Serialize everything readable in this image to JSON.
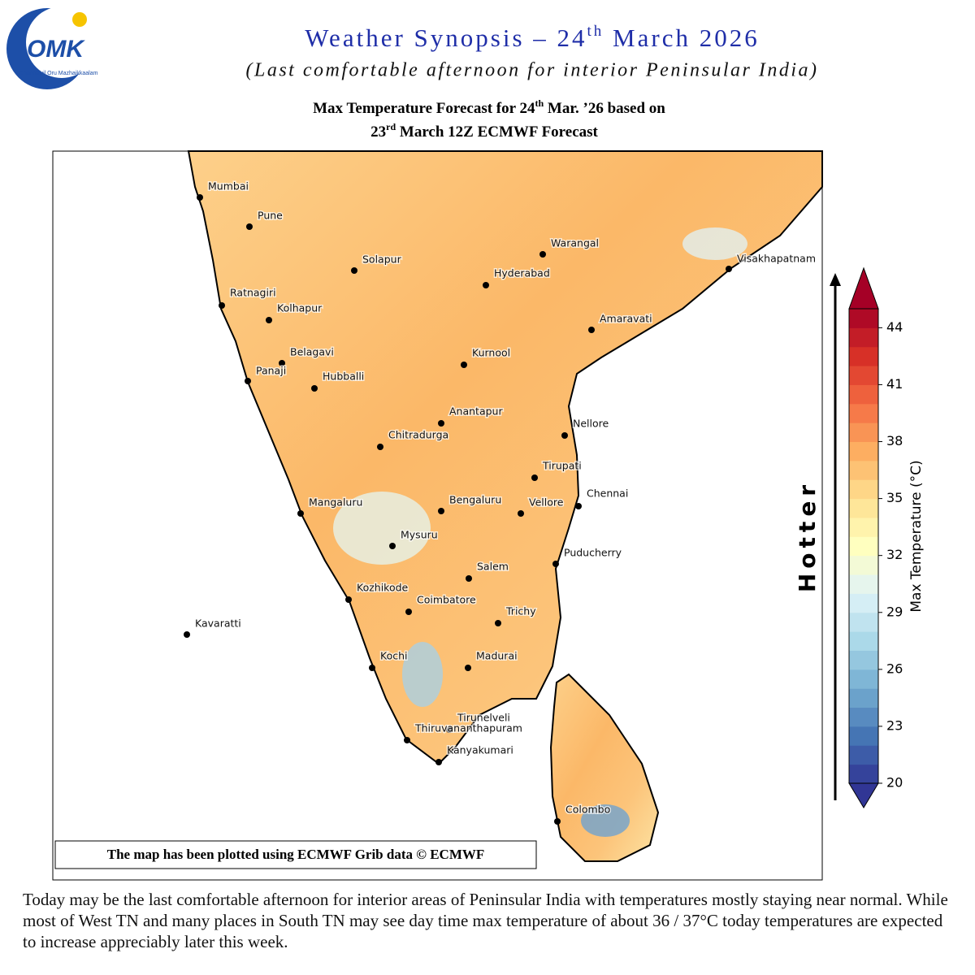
{
  "logo": {
    "mark": "OMK",
    "text": "Chennaiyil Oru Mazhaikkaalam"
  },
  "header": {
    "title": {
      "pre": "Weather Synopsis – 24",
      "sup": "th",
      "post": " March 2026"
    },
    "subtitle": "(Last comfortable afternoon for interior Peninsular India)"
  },
  "map": {
    "title_line1": {
      "pre": "Max Temperature Forecast  for 24",
      "sup": "th",
      "post": " Mar. ’26 based on"
    },
    "title_line2": {
      "pre": "23",
      "sup": "rd",
      "post": " March 12Z ECMWF Forecast"
    },
    "cities": [
      "Mumbai",
      "Pune",
      "Solapur",
      "Warangal",
      "Hyderabad",
      "Visakhapatnam",
      "Ratnagiri",
      "Kolhapur",
      "Amaravati",
      "Belagavi",
      "Kurnool",
      "Panaji",
      "Hubballi",
      "Anantapur",
      "Nellore",
      "Chitradurga",
      "Tirupati",
      "Chennai",
      "Mangaluru",
      "Bengaluru",
      "Vellore",
      "Mysuru",
      "Puducherry",
      "Salem",
      "Kozhikode",
      "Coimbatore",
      "Trichy",
      "Kavaratti",
      "Kochi",
      "Madurai",
      "Tirunelveli",
      "Thiruvananthapuram",
      "Kanyakumari",
      "Colombo"
    ],
    "credit": "The map has been plotted using ECMWF Grib data © ECMWF"
  },
  "colorbar": {
    "label": "Max Temperature (°C)",
    "lim": [
      20,
      45
    ],
    "ticks": [
      20,
      23,
      26,
      29,
      32,
      35,
      38,
      41,
      44
    ],
    "colors": [
      "#313695",
      "#4575b4",
      "#74add1",
      "#abd9e9",
      "#e0f3f8",
      "#ffffbf",
      "#fee090",
      "#fdae61",
      "#f46d43",
      "#d73027",
      "#a50026"
    ],
    "arrow_label": "Hotter"
  },
  "footer": {
    "text": "Today may be the last comfortable afternoon for interior areas of Peninsular India with temperatures mostly staying near normal. While most of West TN and many places in South TN may see day time max temperature of about 36 / 37°C today temperatures are expected to increase appreciably later this week."
  }
}
